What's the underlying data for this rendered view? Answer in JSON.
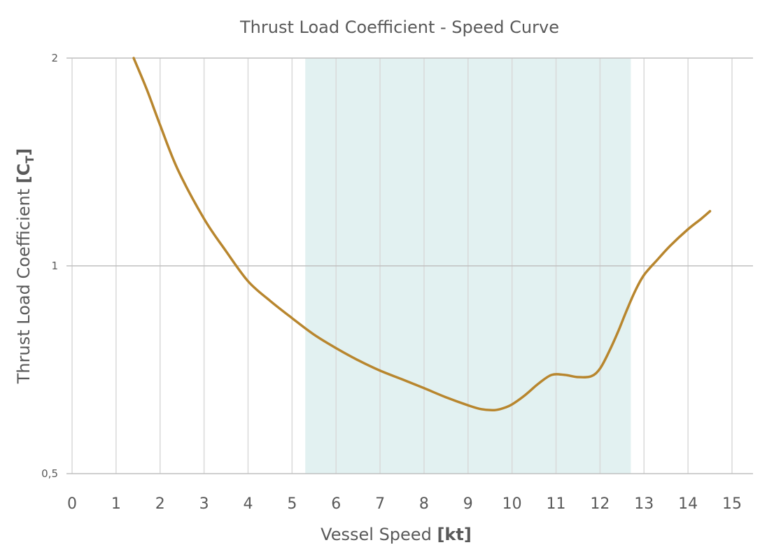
{
  "chart_data": {
    "type": "line",
    "title": "Thrust Load Coefficient - Speed Curve",
    "xlabel": {
      "text": "Vessel Speed ",
      "unit": "[kt]"
    },
    "ylabel": {
      "text": "Thrust Load Coefficient ",
      "unit": "[C",
      "subscript": "T",
      "close": "]"
    },
    "x_ticks": [
      "0",
      "1",
      "2",
      "3",
      "4",
      "5",
      "6",
      "7",
      "8",
      "9",
      "10",
      "11",
      "12",
      "13",
      "14",
      "15"
    ],
    "y_ticks": [
      {
        "value": 0.5,
        "label": "0,5"
      },
      {
        "value": 1,
        "label": "1"
      },
      {
        "value": 2,
        "label": "2"
      }
    ],
    "xlim": [
      0,
      15
    ],
    "ylim": [
      0.5,
      2
    ],
    "y_scale": "log",
    "grid": true,
    "highlight_band": {
      "x_range": [
        5.3,
        12.7
      ],
      "color": "#e2f1f1"
    },
    "series": [
      {
        "color": "#b8862e",
        "x": [
          1.4,
          1.7,
          2.0,
          2.4,
          3.0,
          3.5,
          4.0,
          4.5,
          5.0,
          5.5,
          6.0,
          6.5,
          7.0,
          7.5,
          8.0,
          8.5,
          9.0,
          9.3,
          9.6,
          9.8,
          10.0,
          10.3,
          10.6,
          10.9,
          11.2,
          11.5,
          11.8,
          12.0,
          12.2,
          12.4,
          12.6,
          12.8,
          13.0,
          13.3,
          13.6,
          14.0,
          14.3,
          14.5
        ],
        "y": [
          2.0,
          1.8,
          1.6,
          1.38,
          1.17,
          1.05,
          0.95,
          0.89,
          0.84,
          0.795,
          0.76,
          0.73,
          0.705,
          0.685,
          0.665,
          0.645,
          0.628,
          0.62,
          0.618,
          0.622,
          0.63,
          0.65,
          0.675,
          0.695,
          0.695,
          0.69,
          0.692,
          0.71,
          0.75,
          0.8,
          0.86,
          0.92,
          0.97,
          1.02,
          1.07,
          1.13,
          1.17,
          1.2
        ]
      }
    ]
  }
}
